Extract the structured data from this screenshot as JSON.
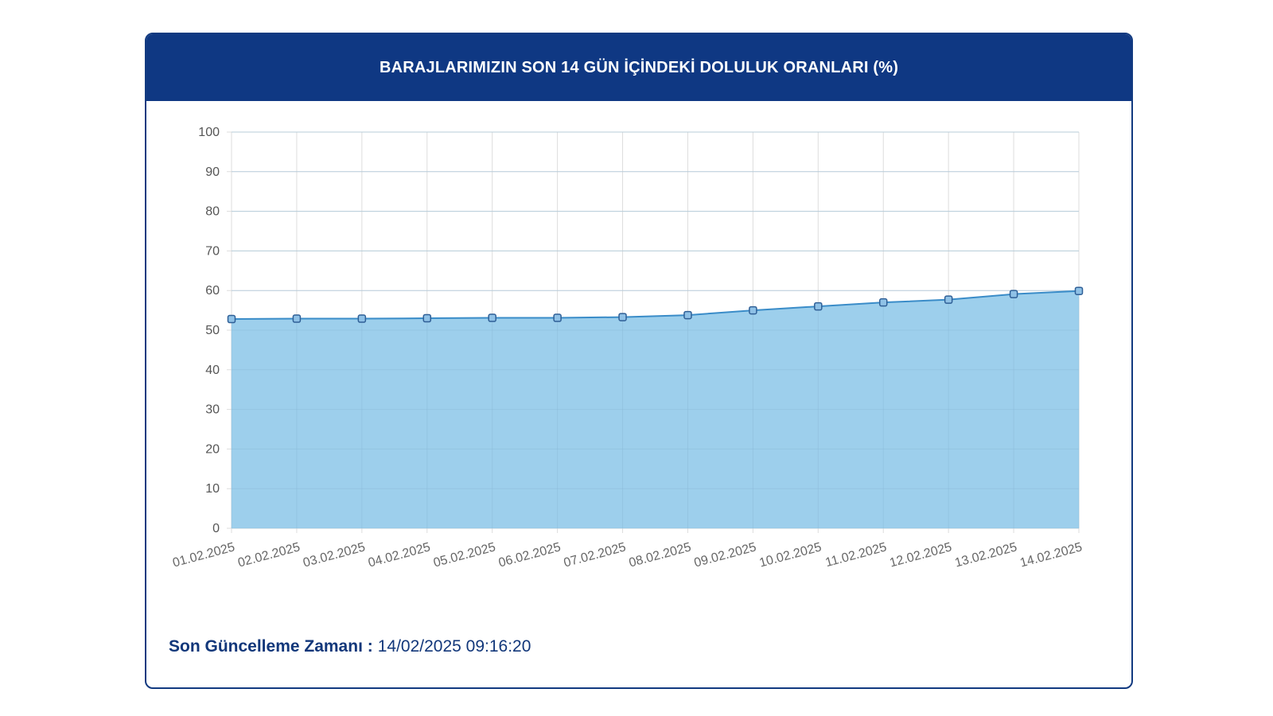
{
  "header": {
    "title": "BARAJLARIMIZIN SON 14 GÜN İÇİNDEKİ DOLULUK ORANLARI (%)"
  },
  "footer": {
    "label": "Son Güncelleme Zamanı :",
    "value": "14/02/2025 09:16:20"
  },
  "colors": {
    "header_bg": "#0f3883",
    "area_fill": "#9dcfec",
    "line": "#3a8cc8",
    "marker_stroke": "#2f5f96",
    "marker_fill": "#8fc1e6",
    "grid": "#dddddd"
  },
  "chart_data": {
    "type": "area",
    "title": "BARAJLARIMIZIN SON 14 GÜN İÇİNDEKİ DOLULUK ORANLARI (%)",
    "xlabel": "",
    "ylabel": "",
    "ylim": [
      0,
      100
    ],
    "y_ticks": [
      "0",
      "10",
      "20",
      "30",
      "40",
      "50",
      "60",
      "70",
      "80",
      "90",
      "100"
    ],
    "grid": true,
    "legend": "none",
    "categories": [
      "01.02.2025",
      "02.02.2025",
      "03.02.2025",
      "04.02.2025",
      "05.02.2025",
      "06.02.2025",
      "07.02.2025",
      "08.02.2025",
      "09.02.2025",
      "10.02.2025",
      "11.02.2025",
      "12.02.2025",
      "13.02.2025",
      "14.02.2025"
    ],
    "series": [
      {
        "values": [
          52.8,
          52.9,
          52.9,
          53.0,
          53.1,
          53.1,
          53.3,
          53.8,
          55.0,
          56.0,
          57.0,
          57.7,
          59.1,
          59.9
        ]
      }
    ]
  }
}
